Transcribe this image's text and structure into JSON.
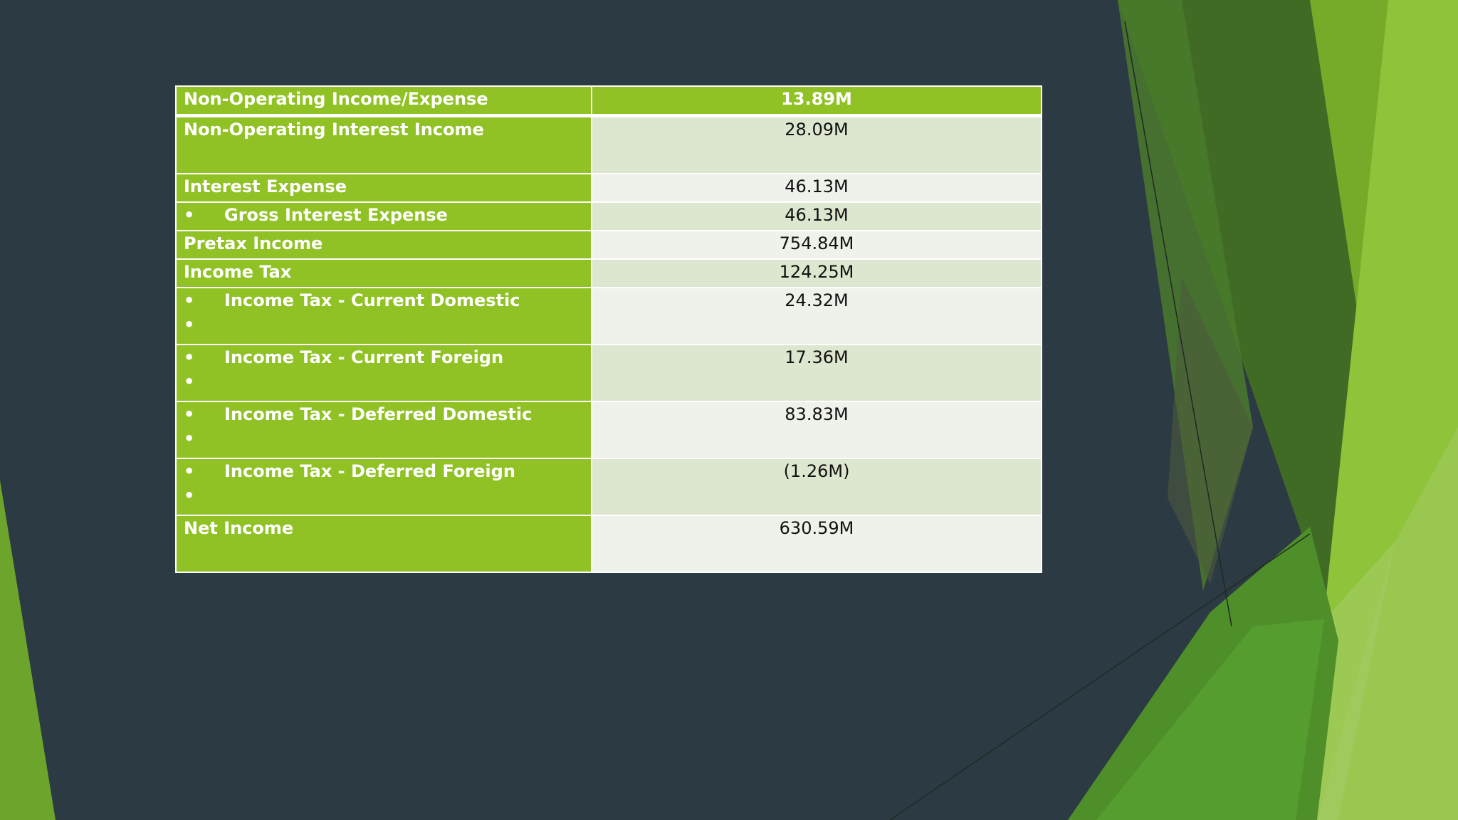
{
  "slide": {
    "accent_colors": {
      "table_green": "#90c226",
      "band_light": "#eef2ea",
      "band_dark": "#dde7cf",
      "background": "#2c3a44"
    },
    "bullet_symbol": "•",
    "rows": [
      {
        "label": "Non-Operating Income/Expense",
        "value": "13.89M",
        "bullet": false,
        "extra_bullet": false
      },
      {
        "label": "Non-Operating Interest Income",
        "value": "28.09M",
        "bullet": false,
        "extra_bullet": false
      },
      {
        "label": "Interest Expense",
        "value": "46.13M",
        "bullet": false,
        "extra_bullet": false
      },
      {
        "label": "Gross Interest Expense",
        "value": "46.13M",
        "bullet": true,
        "extra_bullet": false
      },
      {
        "label": "Pretax Income",
        "value": "754.84M",
        "bullet": false,
        "extra_bullet": false
      },
      {
        "label": "Income Tax",
        "value": "124.25M",
        "bullet": false,
        "extra_bullet": false
      },
      {
        "label": "Income Tax - Current Domestic",
        "value": "24.32M",
        "bullet": true,
        "extra_bullet": true
      },
      {
        "label": "Income Tax - Current Foreign",
        "value": "17.36M",
        "bullet": true,
        "extra_bullet": true
      },
      {
        "label": "Income Tax - Deferred Domestic",
        "value": "83.83M",
        "bullet": true,
        "extra_bullet": true
      },
      {
        "label": "Income Tax - Deferred Foreign",
        "value": "(1.26M)",
        "bullet": true,
        "extra_bullet": true
      },
      {
        "label": "Net Income",
        "value": "630.59M",
        "bullet": false,
        "extra_bullet": false
      }
    ]
  }
}
